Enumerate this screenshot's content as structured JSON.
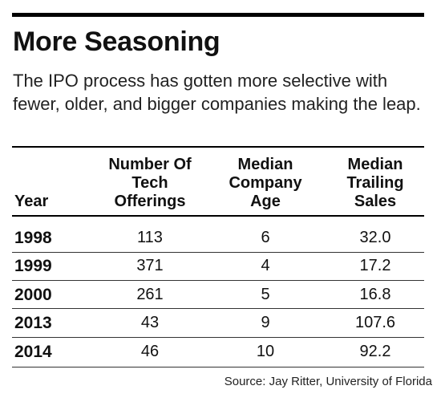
{
  "title": "More Seasoning",
  "subtitle": "The IPO process has gotten more selective with fewer, older, and bigger companies making the leap.",
  "table": {
    "headers": {
      "year": "Year",
      "offerings": [
        "Number Of",
        "Tech",
        "Offerings"
      ],
      "age": [
        "Median",
        "Company",
        "Age"
      ],
      "sales": [
        "Median",
        "Trailing",
        "Sales"
      ]
    },
    "rows": [
      {
        "year": "1998",
        "offerings": "113",
        "age": "6",
        "sales": "32.0"
      },
      {
        "year": "1999",
        "offerings": "371",
        "age": "4",
        "sales": "17.2"
      },
      {
        "year": "2000",
        "offerings": "261",
        "age": "5",
        "sales": "16.8"
      },
      {
        "year": "2013",
        "offerings": "43",
        "age": "9",
        "sales": "107.6"
      },
      {
        "year": "2014",
        "offerings": "46",
        "age": "10",
        "sales": "92.2"
      }
    ]
  },
  "source": "Source: Jay Ritter, University of Florida"
}
